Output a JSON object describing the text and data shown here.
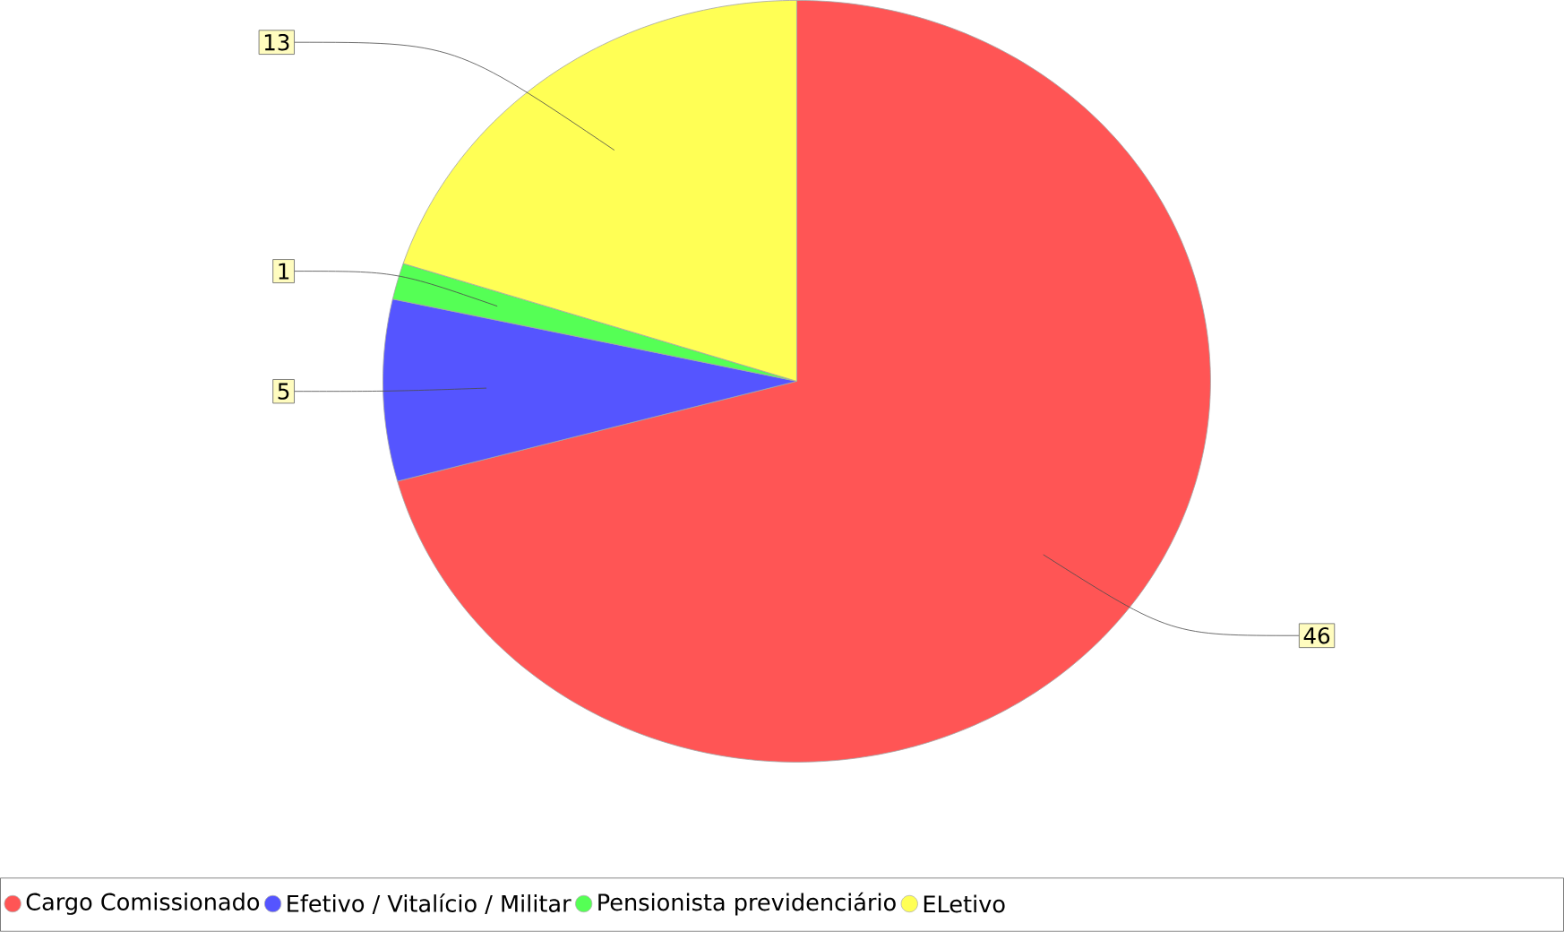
{
  "chart_data": {
    "type": "pie",
    "categories": [
      "Cargo Comissionado",
      "Efetivo / Vitalício / Militar",
      "Pensionista previdenciário",
      "ELetivo"
    ],
    "values": [
      46,
      5,
      1,
      13
    ],
    "colors": [
      "#ff5555",
      "#5555ff",
      "#55ff55",
      "#ffff55"
    ],
    "data_labels": true,
    "legend": "bottom"
  }
}
